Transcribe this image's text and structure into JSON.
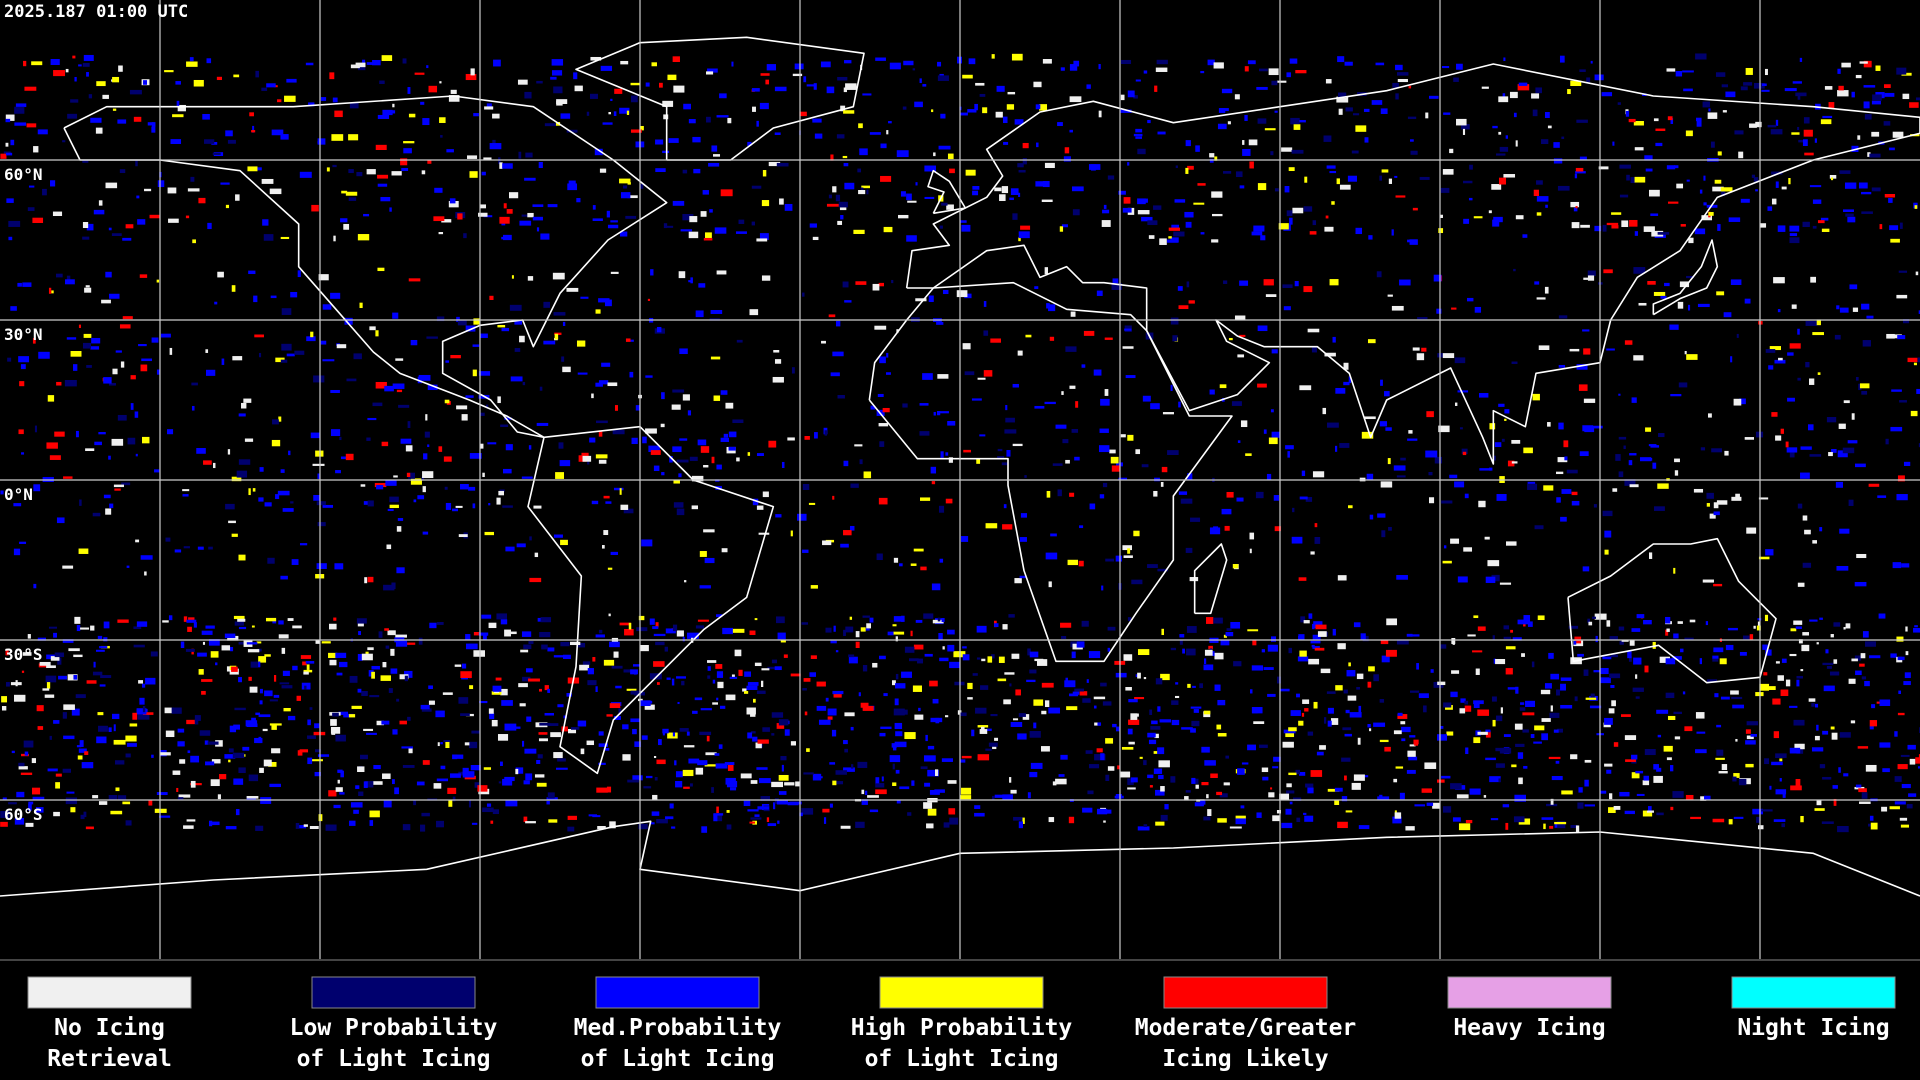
{
  "timestamp": "2025.187 01:00 UTC",
  "map": {
    "xlim": [
      -180,
      180
    ],
    "ylim": [
      -90,
      90
    ],
    "lon_lines": [
      -150,
      -120,
      -90,
      -60,
      -30,
      0,
      30,
      60,
      90,
      120,
      150
    ],
    "lat_lines": [
      {
        "value": 60,
        "label": "60°N"
      },
      {
        "value": 30,
        "label": "30°N"
      },
      {
        "value": 0,
        "label": "0°N"
      },
      {
        "value": -30,
        "label": "30°S"
      },
      {
        "value": -60,
        "label": "60°S"
      }
    ]
  },
  "legend": [
    {
      "lines": [
        "No Icing",
        "Retrieval"
      ],
      "color": "#f0f0f0"
    },
    {
      "lines": [
        "Low Probability",
        "of Light Icing"
      ],
      "color": "#00006e"
    },
    {
      "lines": [
        "Med.Probability",
        "of Light Icing"
      ],
      "color": "#0000ff"
    },
    {
      "lines": [
        "High Probability",
        "of Light Icing"
      ],
      "color": "#ffff00"
    },
    {
      "lines": [
        "Moderate/Greater",
        "Icing Likely"
      ],
      "color": "#ff0000"
    },
    {
      "lines": [
        "Heavy Icing"
      ],
      "color": "#e6a0e6"
    },
    {
      "lines": [
        "Night Icing"
      ],
      "color": "#00ffff"
    }
  ]
}
